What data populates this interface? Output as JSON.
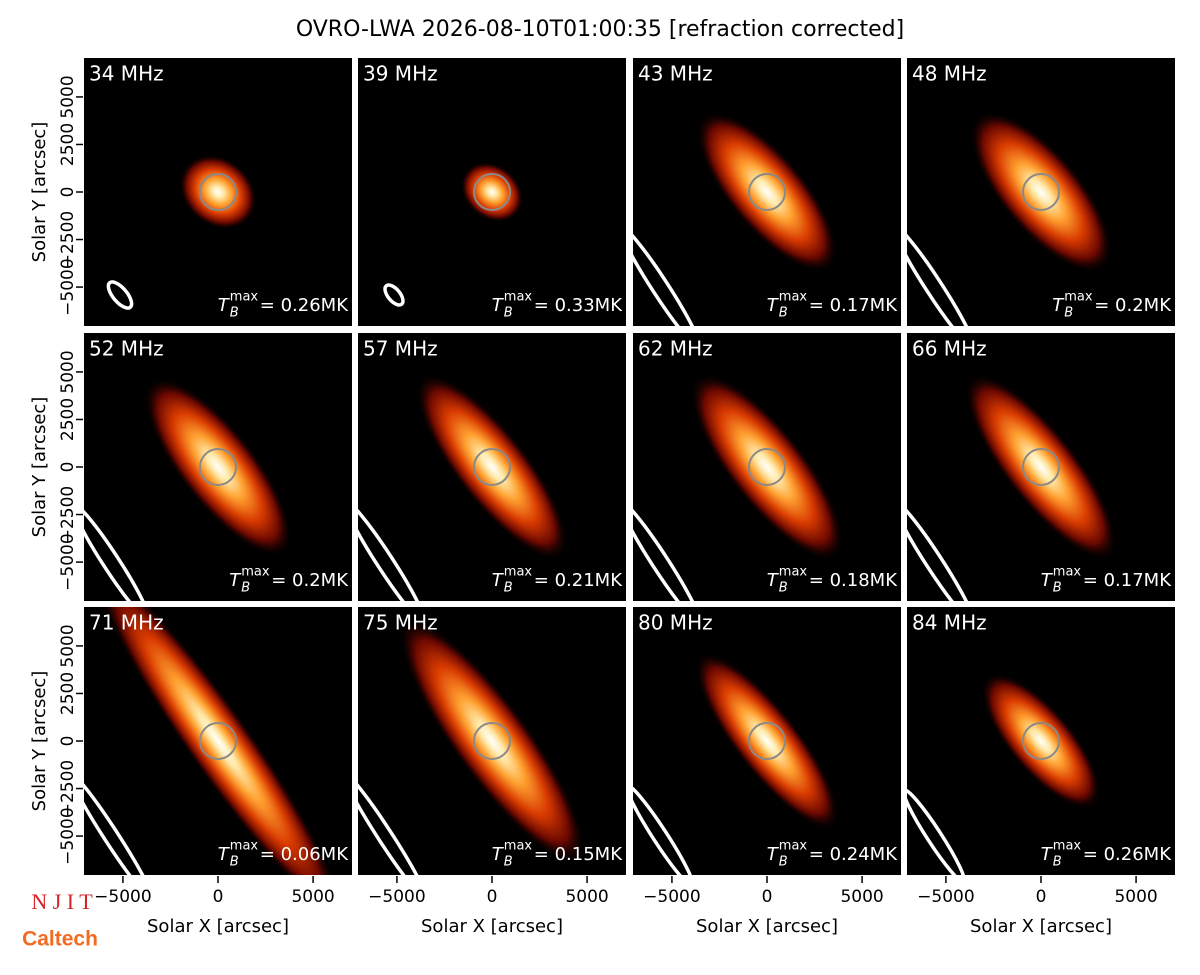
{
  "chart_data": {
    "type": "image-grid",
    "title": "OVRO-LWA 2026-08-10T01:00:35 [refraction corrected]",
    "xlabel": "Solar X [arcsec]",
    "ylabel": "Solar Y [arcsec]",
    "xlim": [
      -7100,
      7100
    ],
    "ylim": [
      -7100,
      7100
    ],
    "xticks": [
      {
        "value": -5000,
        "label": "−5000"
      },
      0,
      5000
    ],
    "yticks": [
      {
        "value": -5000,
        "label": "−5000"
      },
      {
        "value": -2500,
        "label": "−2500"
      },
      0,
      2500,
      5000
    ],
    "tb_symbol": "T",
    "tb_sub": "B",
    "tb_sup": "max",
    "panels": [
      {
        "label": "34 MHz",
        "tb": "= 0.26MK"
      },
      {
        "label": "39 MHz",
        "tb": "= 0.33MK"
      },
      {
        "label": "43 MHz",
        "tb": "= 0.17MK"
      },
      {
        "label": "48 MHz",
        "tb": "= 0.2MK"
      },
      {
        "label": "52 MHz",
        "tb": "= 0.2MK"
      },
      {
        "label": "57 MHz",
        "tb": "= 0.21MK"
      },
      {
        "label": "62 MHz",
        "tb": "= 0.18MK"
      },
      {
        "label": "66 MHz",
        "tb": "= 0.17MK"
      },
      {
        "label": "71 MHz",
        "tb": "= 0.06MK"
      },
      {
        "label": "75 MHz",
        "tb": "= 0.15MK"
      },
      {
        "label": "80 MHz",
        "tb": "= 0.24MK"
      },
      {
        "label": "84 MHz",
        "tb": "= 0.26MK"
      }
    ]
  },
  "logos": {
    "njit": "N J I T",
    "caltech": "Caltech"
  }
}
